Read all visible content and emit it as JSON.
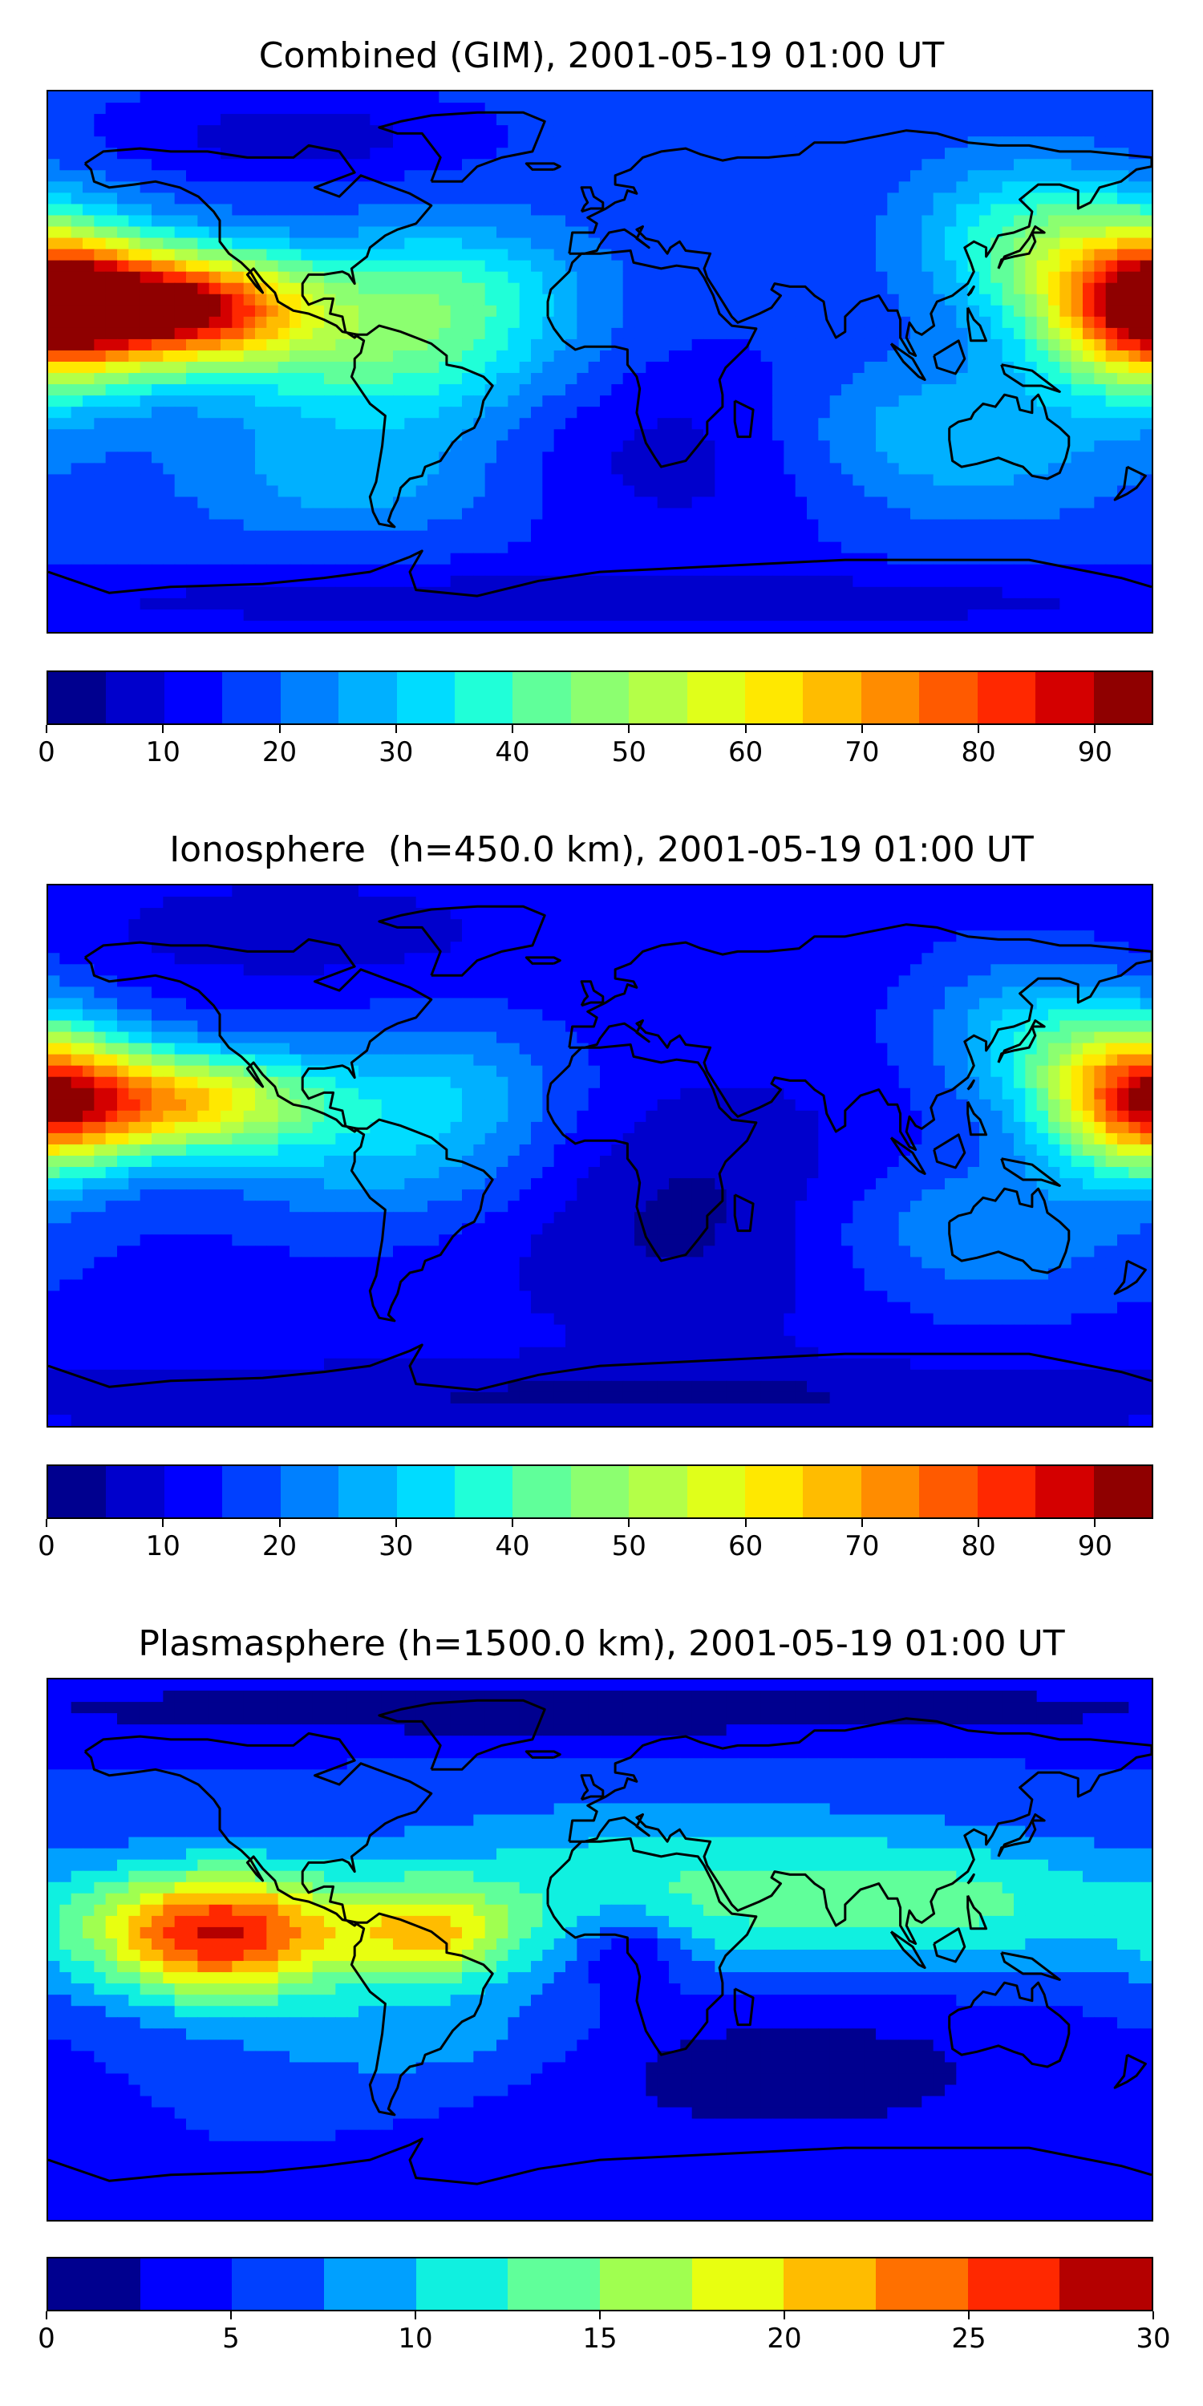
{
  "panels": [
    {
      "title": "Combined (GIM), 2001-05-19 01:00 UT",
      "colorbar": {
        "min": 0,
        "max": 95,
        "ticks": [
          "0",
          "10",
          "20",
          "30",
          "40",
          "50",
          "60",
          "70",
          "80",
          "90"
        ],
        "tick_values": [
          0,
          10,
          20,
          30,
          40,
          50,
          60,
          70,
          80,
          90
        ],
        "colors": [
          "#00008f",
          "#0000cc",
          "#0000ff",
          "#0040ff",
          "#0080ff",
          "#00b0ff",
          "#00dcff",
          "#20ffd8",
          "#60ff9a",
          "#8cff70",
          "#b4ff48",
          "#e0ff1a",
          "#ffe800",
          "#ffbc00",
          "#ff8c00",
          "#ff5a00",
          "#ff2800",
          "#d40000",
          "#8f0000"
        ]
      },
      "field": {
        "base": 17,
        "blobs": [
          {
            "lon": -135,
            "lat": 18,
            "amp": 70,
            "slon": 28,
            "slat": 13
          },
          {
            "lon": -170,
            "lat": 20,
            "amp": 35,
            "slon": 20,
            "slat": 18
          },
          {
            "lon": 172,
            "lat": 18,
            "amp": 48,
            "slon": 22,
            "slat": 18
          },
          {
            "lon": 140,
            "lat": 40,
            "amp": 22,
            "slon": 25,
            "slat": 18
          },
          {
            "lon": -70,
            "lat": 0,
            "amp": 22,
            "slon": 40,
            "slat": 18
          },
          {
            "lon": -50,
            "lat": 25,
            "amp": 18,
            "slon": 30,
            "slat": 15
          },
          {
            "lon": 110,
            "lat": -25,
            "amp": 14,
            "slon": 40,
            "slat": 18
          },
          {
            "lon": -80,
            "lat": -40,
            "amp": 10,
            "slon": 35,
            "slat": 12
          },
          {
            "lon": 30,
            "lat": -30,
            "amp": -10,
            "slon": 45,
            "slat": 25
          },
          {
            "lon": -100,
            "lat": 75,
            "amp": -10,
            "slon": 40,
            "slat": 10
          },
          {
            "lon": 0,
            "lat": -80,
            "amp": -10,
            "slon": 180,
            "slat": 8
          }
        ]
      }
    },
    {
      "title": "Ionosphere  (h=450.0 km), 2001-05-19 01:00 UT",
      "colorbar": {
        "min": 0,
        "max": 95,
        "ticks": [
          "0",
          "10",
          "20",
          "30",
          "40",
          "50",
          "60",
          "70",
          "80",
          "90"
        ],
        "tick_values": [
          0,
          10,
          20,
          30,
          40,
          50,
          60,
          70,
          80,
          90
        ],
        "colors": [
          "#00008f",
          "#0000cc",
          "#0000ff",
          "#0040ff",
          "#0080ff",
          "#00b0ff",
          "#00dcff",
          "#20ffd8",
          "#60ff9a",
          "#8cff70",
          "#b4ff48",
          "#e0ff1a",
          "#ffe800",
          "#ffbc00",
          "#ff8c00",
          "#ff5a00",
          "#ff2800",
          "#d40000",
          "#8f0000"
        ]
      },
      "field": {
        "base": 13,
        "blobs": [
          {
            "lon": -135,
            "lat": 18,
            "amp": 48,
            "slon": 30,
            "slat": 12
          },
          {
            "lon": -175,
            "lat": 18,
            "amp": 30,
            "slon": 20,
            "slat": 16
          },
          {
            "lon": 172,
            "lat": 20,
            "amp": 38,
            "slon": 22,
            "slat": 18
          },
          {
            "lon": 140,
            "lat": 40,
            "amp": 16,
            "slon": 25,
            "slat": 18
          },
          {
            "lon": -70,
            "lat": 0,
            "amp": 14,
            "slon": 40,
            "slat": 18
          },
          {
            "lon": -50,
            "lat": 25,
            "amp": 12,
            "slon": 30,
            "slat": 15
          },
          {
            "lon": 120,
            "lat": -25,
            "amp": 12,
            "slon": 40,
            "slat": 18
          },
          {
            "lon": 30,
            "lat": -20,
            "amp": -10,
            "slon": 45,
            "slat": 30
          },
          {
            "lon": -100,
            "lat": 75,
            "amp": -8,
            "slon": 40,
            "slat": 10
          },
          {
            "lon": 0,
            "lat": -80,
            "amp": -8,
            "slon": 180,
            "slat": 8
          }
        ]
      }
    },
    {
      "title": "Plasmasphere (h=1500.0 km), 2001-05-19 01:00 UT",
      "colorbar": {
        "min": 0,
        "max": 30,
        "ticks": [
          "0",
          "5",
          "10",
          "15",
          "20",
          "25",
          "30"
        ],
        "tick_values": [
          0,
          5,
          10,
          15,
          20,
          25,
          30
        ],
        "colors": [
          "#00008f",
          "#0000ff",
          "#0040ff",
          "#00a0ff",
          "#10f0e0",
          "#60ff9a",
          "#a0ff50",
          "#e8ff10",
          "#ffbc00",
          "#ff7000",
          "#ff2800",
          "#b40000"
        ]
      },
      "field": {
        "base": 5,
        "blobs": [
          {
            "lon": -125,
            "lat": 5,
            "amp": 22,
            "slon": 30,
            "slat": 15
          },
          {
            "lon": -55,
            "lat": 5,
            "amp": 12,
            "slon": 20,
            "slat": 12
          },
          {
            "lon": 20,
            "lat": 20,
            "amp": 7,
            "slon": 70,
            "slat": 20
          },
          {
            "lon": 120,
            "lat": 15,
            "amp": 6,
            "slon": 50,
            "slat": 15
          },
          {
            "lon": -60,
            "lat": -30,
            "amp": 4,
            "slon": 40,
            "slat": 12
          },
          {
            "lon": 10,
            "lat": 0,
            "amp": -6,
            "slon": 12,
            "slat": 10
          },
          {
            "lon": 60,
            "lat": -40,
            "amp": -4,
            "slon": 60,
            "slat": 18
          },
          {
            "lon": 0,
            "lat": 80,
            "amp": -4,
            "slon": 180,
            "slat": 8
          }
        ]
      }
    }
  ]
}
